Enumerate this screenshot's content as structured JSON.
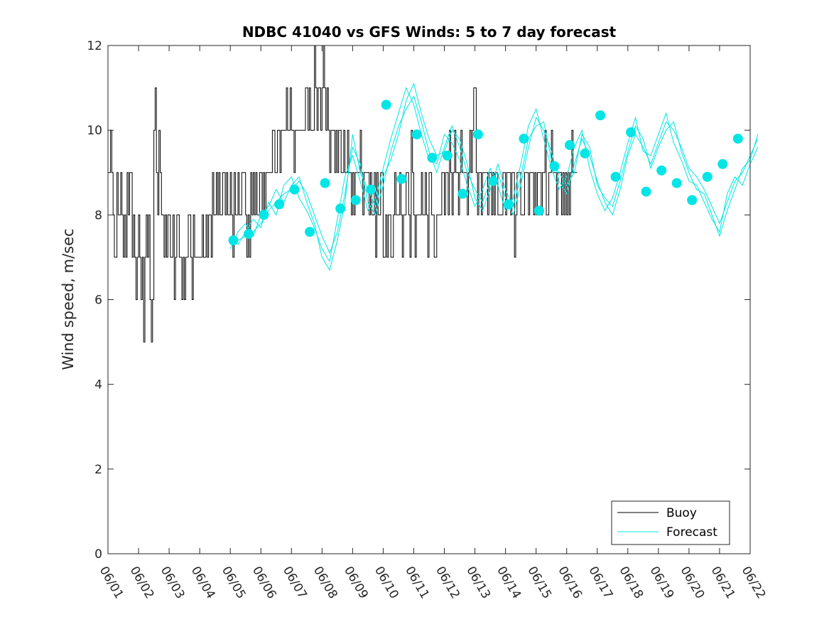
{
  "chart_data": {
    "type": "line",
    "title": "NDBC 41040 vs GFS Winds: 5 to 7 day forecast",
    "xlabel": "",
    "ylabel": "Wind speed, m/sec",
    "xlim": [
      0,
      21
    ],
    "ylim": [
      0,
      12
    ],
    "grid": false,
    "legend_position": "bottom-right",
    "x_tick_labels": [
      "06/01",
      "06/02",
      "06/03",
      "06/04",
      "06/05",
      "06/06",
      "06/07",
      "06/08",
      "06/09",
      "06/10",
      "06/11",
      "06/12",
      "06/13",
      "06/14",
      "06/15",
      "06/16",
      "06/17",
      "06/18",
      "06/19",
      "06/20",
      "06/21",
      "06/22"
    ],
    "y_ticks": [
      0,
      2,
      4,
      6,
      8,
      10,
      12
    ],
    "colors": {
      "buoy": "#000000",
      "forecast": "#00e5e5"
    },
    "series": [
      {
        "name": "Buoy",
        "kind": "step",
        "x_step_days": 0.0416667,
        "values": [
          9,
          9,
          10,
          9,
          8,
          7,
          7,
          9,
          8,
          8,
          9,
          8,
          7,
          8,
          7,
          9,
          8,
          9,
          9,
          7,
          8,
          7,
          6,
          7,
          8,
          7,
          6,
          7,
          5,
          7,
          8,
          7,
          8,
          6,
          5,
          6,
          10,
          11,
          9,
          8,
          10,
          9,
          8,
          8,
          7,
          8,
          7,
          8,
          8,
          7,
          7,
          8,
          6,
          7,
          8,
          8,
          7,
          7,
          6,
          7,
          6,
          7,
          7,
          8,
          8,
          7,
          6,
          8,
          7,
          7,
          7,
          7,
          7,
          7,
          8,
          7,
          7,
          8,
          7,
          8,
          8,
          7,
          9,
          8,
          8,
          9,
          8,
          9,
          8,
          8,
          9,
          9,
          8,
          9,
          8,
          8,
          9,
          8,
          7,
          9,
          8,
          8,
          9,
          8,
          8,
          9,
          9,
          9,
          8,
          7,
          8,
          7,
          9,
          8,
          9,
          8,
          9,
          8,
          8,
          9,
          9,
          8,
          9,
          8,
          9,
          9,
          9,
          9,
          9,
          10,
          10,
          9,
          9,
          10,
          10,
          9,
          10,
          10,
          10,
          10,
          11,
          10,
          10,
          11,
          10,
          10,
          9,
          10,
          10,
          10,
          10,
          10,
          10,
          10,
          10,
          11,
          11,
          10,
          11,
          10,
          10,
          10,
          12,
          11,
          10,
          11,
          11,
          10,
          11,
          12,
          11,
          10,
          11,
          10,
          9,
          10,
          10,
          10,
          9,
          10,
          9,
          10,
          10,
          9,
          9,
          10,
          9,
          9,
          10,
          9,
          9,
          8,
          9,
          8,
          9,
          9,
          9,
          9,
          10,
          9,
          8,
          9,
          9,
          9,
          9,
          8,
          9,
          8,
          8,
          9,
          7,
          9,
          8,
          8,
          9,
          9,
          7,
          7,
          8,
          7,
          8,
          8,
          7,
          7,
          8,
          9,
          8,
          8,
          8,
          9,
          8,
          7,
          8,
          8,
          9,
          9,
          8,
          7,
          10,
          9,
          8,
          7,
          8,
          8,
          8,
          8,
          9,
          8,
          8,
          9,
          8,
          7,
          9,
          9,
          8,
          8,
          7,
          7,
          8,
          8,
          8,
          8,
          9,
          9,
          8,
          9,
          9,
          8,
          10,
          9,
          8,
          9,
          10,
          9,
          9,
          8,
          9,
          10,
          9,
          9,
          9,
          9,
          8,
          9,
          10,
          9,
          10,
          11,
          11,
          9,
          8,
          9,
          9,
          8,
          9,
          9,
          9,
          9,
          8,
          9,
          9,
          8,
          9,
          8,
          9,
          9,
          8,
          8,
          8,
          8,
          9,
          9,
          8,
          9,
          9,
          9,
          8,
          9,
          9,
          7,
          8,
          9,
          9,
          9,
          8,
          8,
          8,
          9,
          9,
          9,
          8,
          9,
          9,
          9,
          8,
          9,
          8,
          9,
          9,
          9,
          8,
          9,
          9,
          10,
          8,
          8,
          9,
          9,
          10,
          9,
          9,
          9,
          8,
          9,
          9,
          9,
          8,
          9,
          8,
          9,
          8,
          9,
          8,
          9,
          10,
          9,
          9,
          9
        ]
      },
      {
        "name": "Forecast",
        "kind": "line",
        "x_step_days": 0.25,
        "start_day": 4.0,
        "members": [
          [
            7.3,
            7.4,
            7.5,
            7.6,
            7.8,
            8.1,
            8.3,
            8.5,
            8.6,
            8.8,
            8.5,
            8.0,
            7.5,
            7.1,
            7.6,
            8.5,
            9.6,
            9.2,
            8.3,
            8.0,
            8.7,
            9.5,
            10.1,
            10.5,
            10.8,
            10.2,
            9.5,
            9.0,
            9.6,
            10.1,
            9.6,
            9.0,
            8.6,
            8.3,
            8.8,
            9.0,
            8.4,
            8.0,
            8.7,
            9.6,
            10.3,
            10.0,
            9.5,
            8.8,
            8.5,
            9.2,
            9.8,
            9.4,
            8.8,
            8.3,
            8.0,
            8.6,
            9.4,
            9.9,
            9.6,
            9.2,
            9.7,
            10.2,
            10.0,
            9.6,
            9.1,
            8.9,
            8.6,
            8.2,
            7.8,
            8.3,
            8.8,
            9.0,
            9.4,
            9.8
          ],
          [
            7.4,
            7.3,
            7.6,
            7.9,
            7.7,
            8.3,
            8.0,
            8.7,
            8.9,
            8.4,
            8.1,
            7.7,
            7.2,
            6.9,
            7.9,
            8.9,
            9.4,
            8.8,
            8.1,
            8.4,
            9.1,
            9.8,
            10.4,
            11.0,
            10.6,
            9.9,
            9.3,
            9.2,
            9.9,
            9.7,
            9.3,
            8.7,
            8.2,
            8.6,
            9.1,
            8.7,
            8.1,
            8.4,
            9.2,
            10.1,
            10.5,
            9.8,
            9.1,
            8.6,
            8.9,
            9.6,
            10.0,
            9.1,
            8.5,
            8.1,
            8.4,
            9.0,
            9.7,
            10.3,
            9.5,
            9.4,
            9.9,
            10.4,
            9.7,
            9.3,
            8.8,
            8.7,
            8.3,
            7.9,
            7.6,
            8.5,
            8.9,
            8.7,
            9.2,
            9.6
          ],
          [
            7.2,
            7.6,
            7.8,
            7.5,
            8.0,
            8.2,
            8.6,
            8.3,
            8.7,
            8.9,
            8.3,
            7.8,
            7.0,
            6.7,
            7.4,
            8.3,
            9.9,
            9.0,
            8.6,
            8.2,
            8.9,
            9.3,
            9.9,
            10.7,
            11.1,
            10.4,
            9.8,
            9.4,
            9.5,
            10.0,
            9.8,
            9.2,
            8.4,
            8.1,
            8.6,
            9.2,
            8.6,
            8.2,
            8.9,
            9.8,
            10.1,
            10.2,
            9.3,
            9.0,
            8.7,
            9.0,
            9.9,
            9.6,
            8.7,
            8.4,
            8.2,
            8.8,
            9.5,
            10.1,
            9.8,
            9.1,
            9.6,
            10.0,
            10.2,
            9.5,
            9.0,
            8.6,
            8.5,
            8.0,
            7.5,
            8.1,
            8.6,
            9.1,
            9.3,
            9.9
          ]
        ],
        "daily_markers": [
          [
            4.1,
            7.4
          ],
          [
            4.6,
            7.55
          ],
          [
            5.1,
            8.0
          ],
          [
            5.6,
            8.25
          ],
          [
            6.1,
            8.6
          ],
          [
            6.6,
            7.6
          ],
          [
            7.1,
            8.75
          ],
          [
            7.6,
            8.15
          ],
          [
            8.1,
            8.35
          ],
          [
            8.6,
            8.6
          ],
          [
            9.1,
            10.6
          ],
          [
            9.6,
            8.85
          ],
          [
            10.1,
            9.9
          ],
          [
            10.6,
            9.35
          ],
          [
            11.1,
            9.4
          ],
          [
            11.6,
            8.5
          ],
          [
            12.1,
            9.9
          ],
          [
            12.6,
            8.8
          ],
          [
            13.1,
            8.25
          ],
          [
            13.6,
            9.8
          ],
          [
            14.1,
            8.1
          ],
          [
            14.6,
            9.15
          ],
          [
            15.1,
            9.65
          ],
          [
            15.6,
            9.45
          ],
          [
            16.1,
            10.35
          ],
          [
            16.6,
            8.9
          ],
          [
            17.1,
            9.95
          ],
          [
            17.6,
            8.55
          ],
          [
            18.1,
            9.05
          ],
          [
            18.6,
            8.75
          ],
          [
            19.1,
            8.35
          ],
          [
            19.6,
            8.9
          ],
          [
            20.1,
            9.2
          ],
          [
            20.6,
            9.8
          ]
        ]
      }
    ],
    "legend": [
      "Buoy",
      "Forecast"
    ]
  }
}
